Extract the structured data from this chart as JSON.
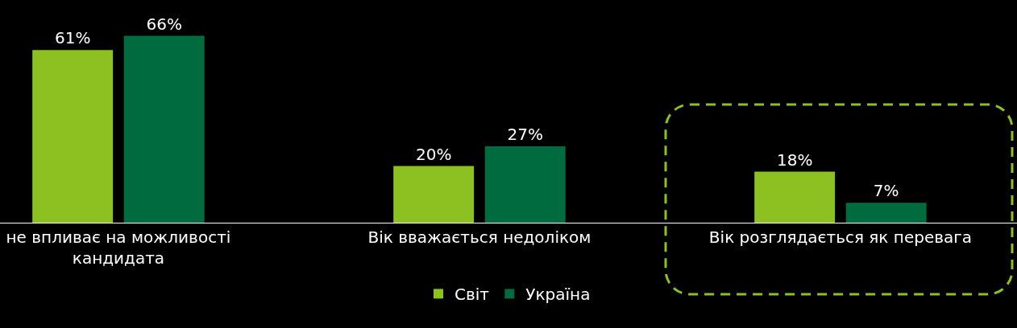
{
  "chart_data": {
    "type": "bar",
    "categories": [
      "не впливає на можливості\nкандидата",
      "Вік вважається недоліком",
      "Вік розглядається як перевага"
    ],
    "series": [
      {
        "name": "Світ",
        "color": "#8dc021",
        "values": [
          61,
          20,
          18
        ],
        "value_labels": [
          "61%",
          "20%",
          "18%"
        ]
      },
      {
        "name": "Україна",
        "color": "#006b3f",
        "values": [
          66,
          27,
          7
        ],
        "value_labels": [
          "66%",
          "27%",
          "7%"
        ]
      }
    ],
    "legend": "bottom",
    "grid": false
  }
}
